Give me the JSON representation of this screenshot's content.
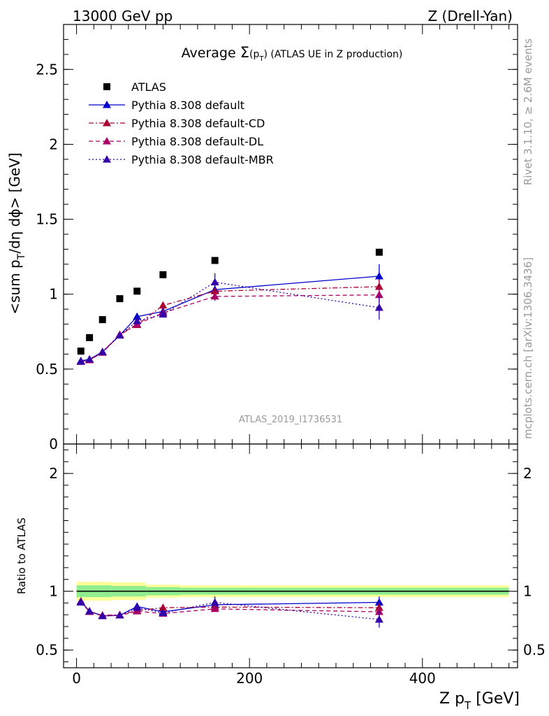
{
  "header": {
    "left": "13000 GeV pp",
    "right": "Z (Drell-Yan)"
  },
  "side": {
    "rivet": "Rivet 3.1.10, ≥ 2.6M events",
    "mcplots": "mcplots.cern.ch [arXiv:1306.3436]"
  },
  "watermark": "ATLAS_2019_I1736531",
  "chart_data": [
    {
      "type": "scatter",
      "title": "Average Σ(p_T) (ATLAS UE in Z production)",
      "title_parts": {
        "pre": "Average ",
        "sym": "Σ",
        "p": "(p",
        "sub": "T",
        "post": ") (ATLAS UE in Z production)"
      },
      "ylabel": "<sum p_T/dη dϕ> [GeV]",
      "ylabel_parts": {
        "a": "<sum p",
        "sub": "T",
        "b": "/dη dϕ> [GeV]"
      },
      "xlim": [
        -15,
        510
      ],
      "ylim": [
        0,
        2.8
      ],
      "yticks": [
        0,
        0.5,
        1,
        1.5,
        2,
        2.5
      ],
      "ytick_labels": [
        "0",
        "0.5",
        "1",
        "1.5",
        "2",
        "2.5"
      ],
      "legend_position": "top-left",
      "series": [
        {
          "name": "ATLAS",
          "color": "#000000",
          "marker": "square",
          "x": [
            5,
            15,
            30,
            50,
            70,
            100,
            160,
            350
          ],
          "y": [
            0.62,
            0.71,
            0.83,
            0.97,
            1.02,
            1.13,
            1.225,
            1.28
          ]
        },
        {
          "name": "Pythia 8.308 default",
          "color": "#0000cc",
          "marker": "triangle",
          "line": "solid",
          "x": [
            5,
            15,
            30,
            50,
            70,
            100,
            160,
            350
          ],
          "y": [
            0.555,
            0.565,
            0.615,
            0.725,
            0.85,
            0.885,
            1.03,
            1.12
          ],
          "yerr": [
            0.01,
            0.01,
            0.01,
            0.015,
            0.02,
            0.02,
            0.03,
            0.08
          ]
        },
        {
          "name": "Pythia 8.308 default-CD",
          "color": "#aa0033",
          "marker": "triangle",
          "line": "dashdot",
          "x": [
            5,
            15,
            30,
            50,
            70,
            100,
            160,
            350
          ],
          "y": [
            0.55,
            0.56,
            0.615,
            0.73,
            0.795,
            0.925,
            1.02,
            1.05
          ],
          "yerr": [
            0.01,
            0.01,
            0.01,
            0.015,
            0.02,
            0.02,
            0.03,
            0.05
          ]
        },
        {
          "name": "Pythia 8.308 default-DL",
          "color": "#aa0066",
          "marker": "triangle",
          "line": "dashed",
          "x": [
            5,
            15,
            30,
            50,
            70,
            100,
            160,
            350
          ],
          "y": [
            0.55,
            0.56,
            0.61,
            0.73,
            0.8,
            0.875,
            0.985,
            0.995
          ],
          "yerr": [
            0.01,
            0.01,
            0.01,
            0.015,
            0.02,
            0.02,
            0.03,
            0.05
          ]
        },
        {
          "name": "Pythia 8.308 default-MBR",
          "color": "#3300aa",
          "marker": "triangle",
          "line": "dotted",
          "x": [
            5,
            15,
            30,
            50,
            70,
            100,
            160,
            350
          ],
          "y": [
            0.55,
            0.565,
            0.615,
            0.725,
            0.82,
            0.865,
            1.08,
            0.91
          ],
          "yerr": [
            0.01,
            0.01,
            0.01,
            0.015,
            0.02,
            0.02,
            0.06,
            0.08
          ]
        }
      ]
    },
    {
      "type": "scatter",
      "ylabel": "Ratio to ATLAS",
      "xlabel": "Z p_T [GeV]",
      "xlabel_parts": {
        "a": "Z p",
        "sub": "T",
        "b": " [GeV]"
      },
      "xlim": [
        -15,
        510
      ],
      "ylim": [
        0.35,
        2.25
      ],
      "xticks": [
        0,
        200,
        400
      ],
      "xtick_labels": [
        "0",
        "200",
        "400"
      ],
      "yticks": [
        0.5,
        1,
        2
      ],
      "ytick_labels": [
        "0.5",
        "1",
        "2"
      ],
      "bands": {
        "edges": [
          0,
          20,
          40,
          80,
          120,
          200,
          500
        ],
        "inner_half": [
          0.05,
          0.05,
          0.045,
          0.035,
          0.03,
          0.03
        ],
        "outer_half": [
          0.08,
          0.08,
          0.075,
          0.055,
          0.05,
          0.05
        ],
        "inner_color": "#90ee90",
        "outer_color": "#ffff99"
      },
      "series": [
        {
          "name": "Pythia 8.308 default",
          "color": "#0000cc",
          "line": "solid",
          "x": [
            5,
            15,
            30,
            50,
            70,
            100,
            160,
            350
          ],
          "y": [
            0.915,
            0.83,
            0.79,
            0.795,
            0.87,
            0.825,
            0.885,
            0.905
          ],
          "yerr": [
            0.01,
            0.01,
            0.01,
            0.01,
            0.02,
            0.02,
            0.025,
            0.05
          ]
        },
        {
          "name": "Pythia 8.308 default-CD",
          "color": "#aa0033",
          "line": "dashdot",
          "x": [
            5,
            15,
            30,
            50,
            70,
            100,
            160,
            350
          ],
          "y": [
            0.91,
            0.825,
            0.795,
            0.8,
            0.835,
            0.86,
            0.865,
            0.86
          ],
          "yerr": [
            0.01,
            0.01,
            0.01,
            0.01,
            0.02,
            0.02,
            0.025,
            0.04
          ]
        },
        {
          "name": "Pythia 8.308 default-DL",
          "color": "#aa0066",
          "line": "dashed",
          "x": [
            5,
            15,
            30,
            50,
            70,
            100,
            160,
            350
          ],
          "y": [
            0.91,
            0.825,
            0.79,
            0.795,
            0.83,
            0.81,
            0.85,
            0.825
          ],
          "yerr": [
            0.01,
            0.01,
            0.01,
            0.01,
            0.02,
            0.02,
            0.025,
            0.04
          ]
        },
        {
          "name": "Pythia 8.308 default-MBR",
          "color": "#3300aa",
          "line": "dotted",
          "x": [
            5,
            15,
            30,
            50,
            70,
            100,
            160,
            350
          ],
          "y": [
            0.905,
            0.83,
            0.79,
            0.795,
            0.86,
            0.815,
            0.905,
            0.76
          ],
          "yerr": [
            0.01,
            0.01,
            0.01,
            0.01,
            0.02,
            0.02,
            0.05,
            0.07
          ]
        }
      ]
    }
  ]
}
